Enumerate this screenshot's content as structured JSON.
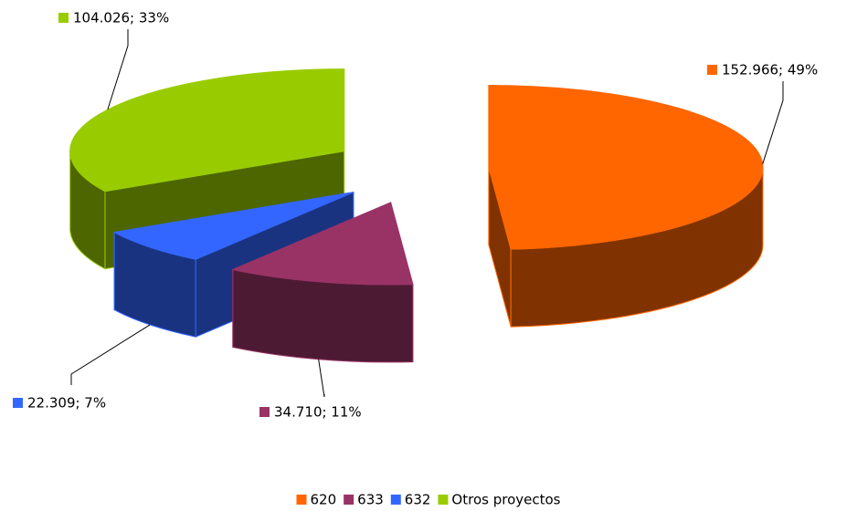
{
  "chart_data": {
    "type": "pie",
    "categories": [
      "620",
      "633",
      "632",
      "Otros proyectos"
    ],
    "values": [
      152966,
      34710,
      22309,
      104026
    ],
    "value_labels": [
      "152.966; 49%",
      "34.710; 11%",
      "22.309; 7%",
      "104.026; 33%"
    ],
    "colors": [
      "#ff6600",
      "#993366",
      "#3366ff",
      "#99cc00"
    ],
    "legend": "bottom"
  }
}
